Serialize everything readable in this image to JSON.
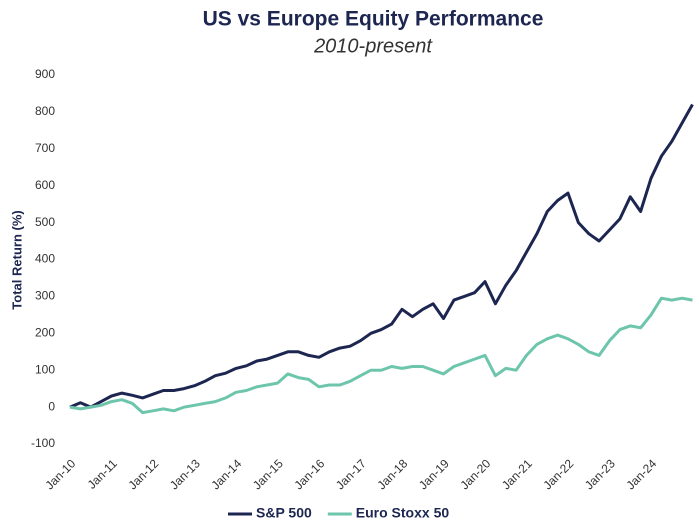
{
  "chart_data": {
    "type": "line",
    "title": "US vs Europe Equity Performance",
    "subtitle": "2010-present",
    "y_label": "Total Return (%)",
    "categories": [
      "Jan-10",
      null,
      null,
      null,
      "Jan-11",
      null,
      null,
      null,
      "Jan-12",
      null,
      null,
      null,
      "Jan-13",
      null,
      null,
      null,
      "Jan-14",
      null,
      null,
      null,
      "Jan-15",
      null,
      null,
      null,
      "Jan-16",
      null,
      null,
      null,
      "Jan-17",
      null,
      null,
      null,
      "Jan-18",
      null,
      null,
      null,
      "Jan-19",
      null,
      null,
      null,
      "Jan-20",
      null,
      null,
      null,
      "Jan-21",
      null,
      null,
      null,
      "Jan-22",
      null,
      null,
      null,
      "Jan-23",
      null,
      null,
      null,
      "Jan-24",
      null,
      null,
      null,
      null
    ],
    "series": [
      {
        "name": "S&P 500",
        "color": "#1c2650",
        "values": [
          0,
          12,
          0,
          15,
          30,
          38,
          32,
          25,
          35,
          45,
          45,
          50,
          58,
          70,
          85,
          92,
          105,
          112,
          125,
          130,
          140,
          150,
          150,
          140,
          135,
          150,
          160,
          165,
          180,
          200,
          210,
          225,
          265,
          245,
          265,
          280,
          240,
          290,
          300,
          310,
          340,
          280,
          330,
          370,
          420,
          470,
          530,
          560,
          580,
          500,
          470,
          450,
          480,
          510,
          570,
          530,
          620,
          680,
          720,
          770,
          820
        ]
      },
      {
        "name": "Euro Stoxx 50",
        "color": "#6dc6ac",
        "values": [
          0,
          -5,
          0,
          5,
          15,
          20,
          10,
          -15,
          -10,
          -5,
          -10,
          0,
          5,
          10,
          15,
          25,
          40,
          45,
          55,
          60,
          65,
          90,
          80,
          75,
          55,
          60,
          60,
          70,
          85,
          100,
          100,
          110,
          105,
          110,
          110,
          100,
          90,
          110,
          120,
          130,
          140,
          85,
          105,
          100,
          140,
          170,
          185,
          195,
          185,
          170,
          150,
          140,
          180,
          210,
          220,
          215,
          250,
          295,
          290,
          295,
          290
        ]
      }
    ],
    "ylim": [
      -100,
      900
    ],
    "yticks": [
      -100,
      0,
      100,
      200,
      300,
      400,
      500,
      600,
      700,
      800,
      900
    ],
    "grid": false,
    "legend": "bottom"
  }
}
